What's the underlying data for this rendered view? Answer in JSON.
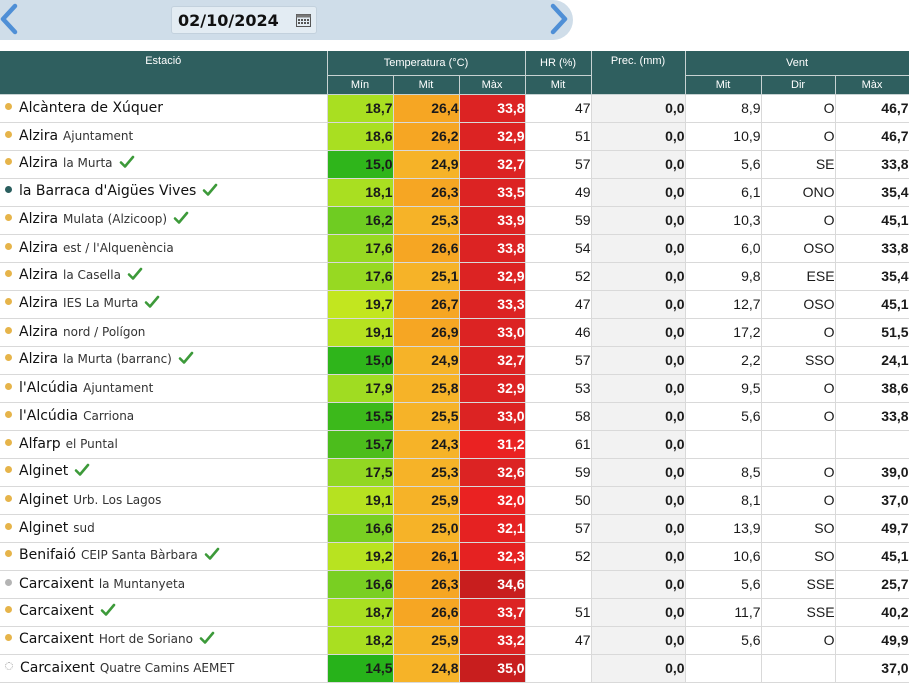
{
  "header": {
    "date": "02/10/2024",
    "icons": {
      "prev": "chevron-left-icon",
      "next": "chevron-right-icon",
      "calendar": "calendar-icon"
    }
  },
  "table": {
    "group_headers": {
      "station": "Estació",
      "temperature": "Temperatura (°C)",
      "humidity": "HR (%)",
      "precipitation": "Prec. (mm)",
      "wind": "Vent"
    },
    "sub_headers": {
      "t_min": "Mín",
      "t_mit": "Mit",
      "t_max": "Màx",
      "hr_mit": "Mit",
      "w_mit": "Mit",
      "w_dir": "Dir",
      "w_max": "Màx"
    },
    "rows": [
      {
        "dot": "#e6b44a",
        "main": "Alcàntera de Xúquer",
        "sub": "",
        "check": false,
        "tmin": "18,7",
        "tmit": "26,4",
        "tmax": "33,8",
        "hr": "47",
        "prec": "0,0",
        "wmit": "8,9",
        "wdir": "O",
        "wmax": "46,7",
        "cmin": "#a9df21",
        "cmit": "#f6a623",
        "cmax": "#dc2323"
      },
      {
        "dot": "#e6b44a",
        "main": "Alzira",
        "sub": "Ajuntament",
        "check": false,
        "tmin": "18,6",
        "tmit": "26,2",
        "tmax": "32,9",
        "hr": "51",
        "prec": "0,0",
        "wmit": "10,9",
        "wdir": "O",
        "wmax": "46,7",
        "cmin": "#a9df21",
        "cmit": "#f6a623",
        "cmax": "#dc2323"
      },
      {
        "dot": "#e6b44a",
        "main": "Alzira",
        "sub": "la Murta",
        "check": true,
        "tmin": "15,0",
        "tmit": "24,9",
        "tmax": "32,7",
        "hr": "57",
        "prec": "0,0",
        "wmit": "5,6",
        "wdir": "SE",
        "wmax": "33,8",
        "cmin": "#2fb51b",
        "cmit": "#f6b328",
        "cmax": "#dc2323"
      },
      {
        "dot": "#2a5e5e",
        "main": "la Barraca d'Aigües Vives",
        "sub": "",
        "check": true,
        "tmin": "18,1",
        "tmit": "26,3",
        "tmax": "33,5",
        "hr": "49",
        "prec": "0,0",
        "wmit": "6,1",
        "wdir": "ONO",
        "wmax": "35,4",
        "cmin": "#a9df21",
        "cmit": "#f6a623",
        "cmax": "#dc2323"
      },
      {
        "dot": "#e6b44a",
        "main": "Alzira",
        "sub": "Mulata (Alzicoop)",
        "check": true,
        "tmin": "16,2",
        "tmit": "25,3",
        "tmax": "33,9",
        "hr": "59",
        "prec": "0,0",
        "wmit": "10,3",
        "wdir": "O",
        "wmax": "45,1",
        "cmin": "#6fcc22",
        "cmit": "#f6b328",
        "cmax": "#dc2323"
      },
      {
        "dot": "#e6b44a",
        "main": "Alzira",
        "sub": "est / l'Alquenència",
        "check": false,
        "tmin": "17,6",
        "tmit": "26,6",
        "tmax": "33,8",
        "hr": "54",
        "prec": "0,0",
        "wmit": "6,0",
        "wdir": "OSO",
        "wmax": "33,8",
        "cmin": "#97d922",
        "cmit": "#f6a623",
        "cmax": "#dc2323"
      },
      {
        "dot": "#e6b44a",
        "main": "Alzira",
        "sub": "la Casella",
        "check": true,
        "tmin": "17,6",
        "tmit": "25,1",
        "tmax": "32,9",
        "hr": "52",
        "prec": "0,0",
        "wmit": "9,8",
        "wdir": "ESE",
        "wmax": "35,4",
        "cmin": "#97d922",
        "cmit": "#f6b328",
        "cmax": "#dc2323"
      },
      {
        "dot": "#e6b44a",
        "main": "Alzira",
        "sub": "IES La Murta",
        "check": true,
        "tmin": "19,7",
        "tmit": "26,7",
        "tmax": "33,3",
        "hr": "47",
        "prec": "0,0",
        "wmit": "12,7",
        "wdir": "OSO",
        "wmax": "45,1",
        "cmin": "#c2e61f",
        "cmit": "#f6a623",
        "cmax": "#dc2323"
      },
      {
        "dot": "#e6b44a",
        "main": "Alzira",
        "sub": "nord / Polígon",
        "check": false,
        "tmin": "19,1",
        "tmit": "26,9",
        "tmax": "33,0",
        "hr": "46",
        "prec": "0,0",
        "wmit": "17,2",
        "wdir": "O",
        "wmax": "51,5",
        "cmin": "#b6e220",
        "cmit": "#f6a623",
        "cmax": "#dc2323"
      },
      {
        "dot": "#e6b44a",
        "main": "Alzira",
        "sub": "la Murta (barranc)",
        "check": true,
        "tmin": "15,0",
        "tmit": "24,9",
        "tmax": "32,7",
        "hr": "57",
        "prec": "0,0",
        "wmit": "2,2",
        "wdir": "SSO",
        "wmax": "24,1",
        "cmin": "#2fb51b",
        "cmit": "#f6b328",
        "cmax": "#dc2323"
      },
      {
        "dot": "#e6b44a",
        "main": "l'Alcúdia",
        "sub": "Ajuntament",
        "check": false,
        "tmin": "17,9",
        "tmit": "25,8",
        "tmax": "32,9",
        "hr": "53",
        "prec": "0,0",
        "wmit": "9,5",
        "wdir": "O",
        "wmax": "38,6",
        "cmin": "#a0dc22",
        "cmit": "#f6b328",
        "cmax": "#dc2323"
      },
      {
        "dot": "#e6b44a",
        "main": "l'Alcúdia",
        "sub": "Carriona",
        "check": false,
        "tmin": "15,5",
        "tmit": "25,5",
        "tmax": "33,0",
        "hr": "58",
        "prec": "0,0",
        "wmit": "5,6",
        "wdir": "O",
        "wmax": "33,8",
        "cmin": "#3cb91b",
        "cmit": "#f6b328",
        "cmax": "#dc2323"
      },
      {
        "dot": "#e6b44a",
        "main": "Alfarp",
        "sub": "el Puntal",
        "check": false,
        "tmin": "15,7",
        "tmit": "24,3",
        "tmax": "31,2",
        "hr": "61",
        "prec": "0,0",
        "wmit": "",
        "wdir": "",
        "wmax": "",
        "cmin": "#4cbd1c",
        "cmit": "#f6b328",
        "cmax": "#ea2222"
      },
      {
        "dot": "#e6b44a",
        "main": "Alginet",
        "sub": "",
        "check": true,
        "tmin": "17,5",
        "tmit": "25,3",
        "tmax": "32,6",
        "hr": "59",
        "prec": "0,0",
        "wmit": "8,5",
        "wdir": "O",
        "wmax": "39,0",
        "cmin": "#92d722",
        "cmit": "#f6b328",
        "cmax": "#dc2323"
      },
      {
        "dot": "#e6b44a",
        "main": "Alginet",
        "sub": "Urb. Los Lagos",
        "check": false,
        "tmin": "19,1",
        "tmit": "25,9",
        "tmax": "32,0",
        "hr": "50",
        "prec": "0,0",
        "wmit": "8,1",
        "wdir": "O",
        "wmax": "37,0",
        "cmin": "#b6e220",
        "cmit": "#f6b328",
        "cmax": "#ea2222"
      },
      {
        "dot": "#e6b44a",
        "main": "Alginet",
        "sub": "sud",
        "check": false,
        "tmin": "16,6",
        "tmit": "25,0",
        "tmax": "32,1",
        "hr": "57",
        "prec": "0,0",
        "wmit": "13,9",
        "wdir": "SO",
        "wmax": "49,7",
        "cmin": "#79cf22",
        "cmit": "#f6b328",
        "cmax": "#e52222"
      },
      {
        "dot": "#e6b44a",
        "main": "Benifaió",
        "sub": "CEIP Santa Bàrbara",
        "check": true,
        "tmin": "19,2",
        "tmit": "26,1",
        "tmax": "32,3",
        "hr": "52",
        "prec": "0,0",
        "wmit": "10,6",
        "wdir": "SO",
        "wmax": "45,1",
        "cmin": "#b8e320",
        "cmit": "#f6a623",
        "cmax": "#e52222"
      },
      {
        "dot": "#b4b4b4",
        "main": "Carcaixent",
        "sub": "la Muntanyeta",
        "check": false,
        "tmin": "16,6",
        "tmit": "26,3",
        "tmax": "34,6",
        "hr": "",
        "prec": "0,0",
        "wmit": "5,6",
        "wdir": "SSE",
        "wmax": "25,7",
        "cmin": "#79cf22",
        "cmit": "#f6a623",
        "cmax": "#c81e1e"
      },
      {
        "dot": "#e6b44a",
        "main": "Carcaixent",
        "sub": "",
        "check": true,
        "tmin": "18,7",
        "tmit": "26,6",
        "tmax": "33,7",
        "hr": "51",
        "prec": "0,0",
        "wmit": "11,7",
        "wdir": "SSE",
        "wmax": "40,2",
        "cmin": "#a9df21",
        "cmit": "#f6a623",
        "cmax": "#dc2323"
      },
      {
        "dot": "#e6b44a",
        "main": "Carcaixent",
        "sub": "Hort de Soriano",
        "check": true,
        "tmin": "18,2",
        "tmit": "25,9",
        "tmax": "33,2",
        "hr": "47",
        "prec": "0,0",
        "wmit": "5,6",
        "wdir": "O",
        "wmax": "49,9",
        "cmin": "#a9df21",
        "cmit": "#f6b328",
        "cmax": "#dc2323"
      },
      {
        "dot": "none",
        "main": "Carcaixent",
        "sub": "Quatre Camins AEMET",
        "check": false,
        "tmin": "14,5",
        "tmit": "24,8",
        "tmax": "35,0",
        "hr": "",
        "prec": "0,0",
        "wmit": "",
        "wdir": "",
        "wmax": "37,0",
        "cmin": "#27b21a",
        "cmit": "#f6b328",
        "cmax": "#c81e1e"
      }
    ]
  }
}
